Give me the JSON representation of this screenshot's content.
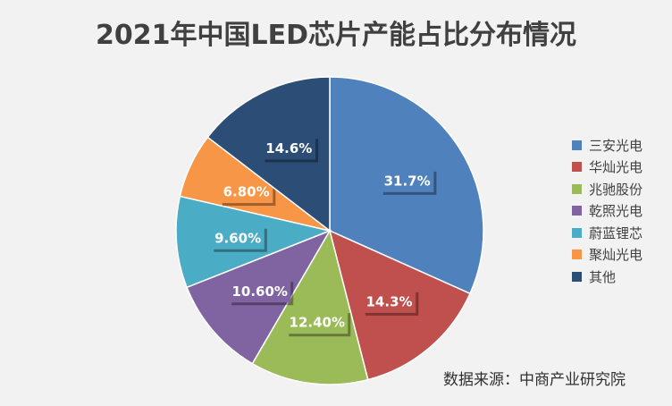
{
  "chart_data": {
    "type": "pie",
    "title": "2021年中国LED芯片产能占比分布情况",
    "categories": [
      "三安光电",
      "华灿光电",
      "兆驰股份",
      "乾照光电",
      "蔚蓝锂芯",
      "聚灿光电",
      "其他"
    ],
    "values": [
      31.7,
      14.3,
      12.4,
      10.6,
      9.6,
      6.8,
      14.6
    ],
    "data_labels": [
      "31.7%",
      "14.3%",
      "12.40%",
      "10.60%",
      "9.60%",
      "6.80%",
      "14.6%"
    ],
    "colors": [
      "#4f81bd",
      "#c0504d",
      "#9bbb59",
      "#8064a2",
      "#4bacc6",
      "#f79646",
      "#2c4d75"
    ],
    "legend_position": "right",
    "source": "数据来源：中商产业研究院"
  }
}
